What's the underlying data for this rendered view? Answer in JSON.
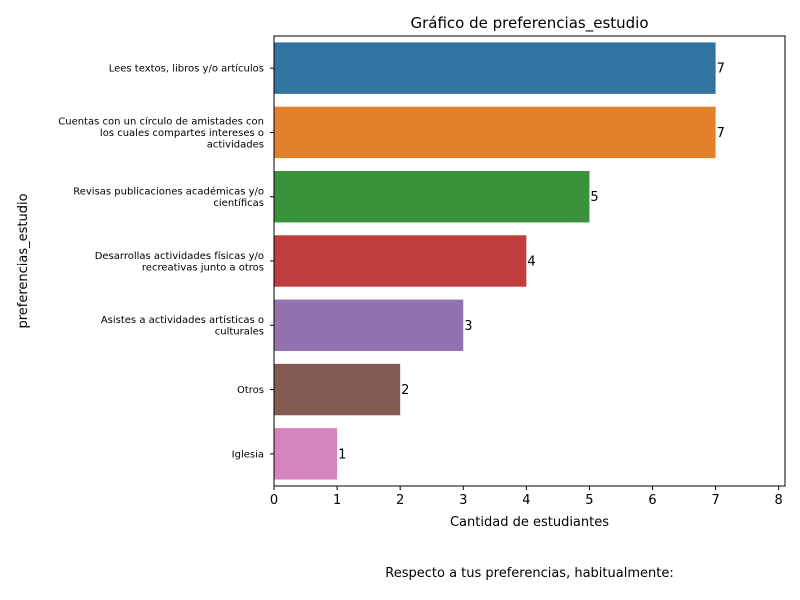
{
  "chart_data": {
    "type": "bar",
    "orientation": "horizontal",
    "title": "Gráfico de preferencias_estudio",
    "xlabel": "Cantidad de estudiantes",
    "ylabel": "preferencias_estudio",
    "xlim": [
      0,
      8.1
    ],
    "xticks": [
      "0",
      "1",
      "2",
      "3",
      "4",
      "5",
      "6",
      "7",
      "8"
    ],
    "grid": false,
    "legend": "none",
    "categories": [
      [
        "Lees textos, libros y/o artículos"
      ],
      [
        "Cuentas con un círculo de amistades con",
        "los cuales compartes intereses o",
        "actividades"
      ],
      [
        "Revisas publicaciones académicas y/o",
        "científicas"
      ],
      [
        "Desarrollas actividades físicas y/o",
        "recreativas junto a otros"
      ],
      [
        "Asistes a actividades artísticas o",
        "culturales"
      ],
      [
        "Otros"
      ],
      [
        "Iglesia"
      ]
    ],
    "values": [
      7,
      7,
      5,
      4,
      3,
      2,
      1
    ],
    "colors": [
      "#3274a1",
      "#e1812c",
      "#3a923a",
      "#c03d3e",
      "#9372b2",
      "#845b53",
      "#d684bd"
    ]
  },
  "caption": "Respecto a tus preferencias, habitualmente:"
}
